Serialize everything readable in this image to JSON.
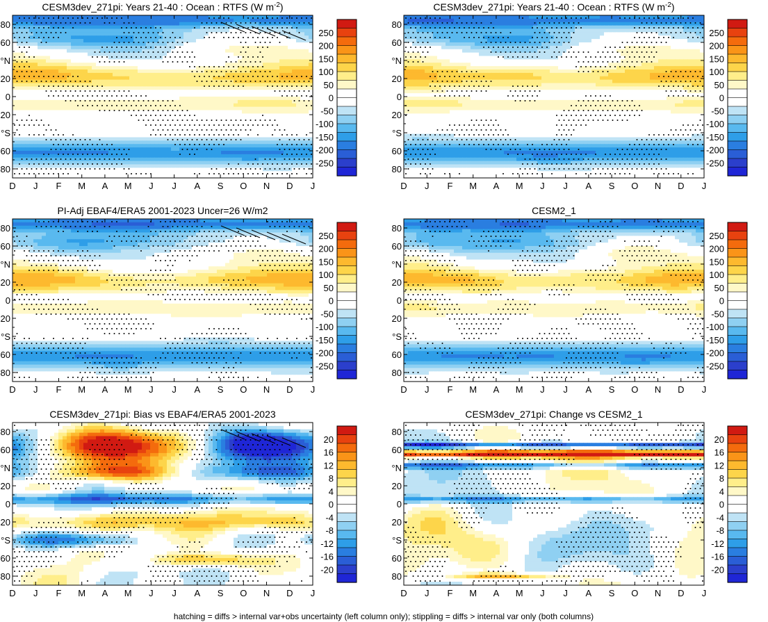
{
  "footer": "hatching = diffs > internal var+obs uncertainty (left column only); stippling = diffs > internal var only (both columns)",
  "chart_data": [
    {
      "type": "heatmap",
      "title": "CESM3dev_271pi: Years 21-40 : Ocean : RTFS (W m",
      "title_sup": "-2",
      "title_end": ")",
      "field": "rtfs",
      "seed": 11,
      "hatch": true,
      "scale": "abs"
    },
    {
      "type": "heatmap",
      "title": "CESM3dev_271pi: Years 21-40 : Ocean : RTFS (W m",
      "title_sup": "-2",
      "title_end": ")",
      "field": "rtfs",
      "seed": 23,
      "hatch": false,
      "scale": "abs"
    },
    {
      "type": "heatmap",
      "title": "PI-Adj EBAF4/ERA5 2001-2023 Uncer=26 W/m2",
      "title_sup": "",
      "title_end": "",
      "field": "rtfs",
      "seed": 37,
      "hatch": true,
      "scale": "abs"
    },
    {
      "type": "heatmap",
      "title": "CESM2_1",
      "title_sup": "",
      "title_end": "",
      "field": "rtfs",
      "seed": 41,
      "hatch": false,
      "scale": "abs"
    },
    {
      "type": "heatmap",
      "title": "CESM3dev_271pi: Bias vs EBAF4/ERA5 2001-2023",
      "title_sup": "",
      "title_end": "",
      "field": "bias",
      "seed": 53,
      "hatch": true,
      "scale": "diff"
    },
    {
      "type": "heatmap",
      "title": "CESM3dev_271pi: Change vs CESM2_1",
      "title_sup": "",
      "title_end": "",
      "field": "change",
      "seed": 67,
      "hatch": false,
      "scale": "diff"
    }
  ],
  "axes": {
    "x_ticks": [
      "D",
      "J",
      "F",
      "M",
      "A",
      "M",
      "J",
      "J",
      "A",
      "S",
      "O",
      "N",
      "D",
      "J"
    ],
    "y_ticks": [
      "80",
      "60",
      "°N",
      "20",
      "0",
      "20",
      "°S",
      "60",
      "80"
    ],
    "y_values": [
      80,
      60,
      40,
      20,
      0,
      -20,
      -40,
      -60,
      -80
    ],
    "ylim": [
      -90,
      90
    ]
  },
  "colorbars": {
    "abs": {
      "labels": [
        "250",
        "200",
        "150",
        "100",
        "50",
        "0",
        "-50",
        "-100",
        "-150",
        "-200",
        "-250"
      ],
      "colors": [
        "#d11a12",
        "#e8420f",
        "#f46b0d",
        "#fa9418",
        "#fdb92e",
        "#fdd54a",
        "#ffee8a",
        "#fff8c8",
        "#ffffff",
        "#ffffff",
        "#bfe3f5",
        "#8fd0f2",
        "#59b9ef",
        "#2e9ee8",
        "#2a7ee0",
        "#2a5ed6",
        "#2b3fcc",
        "#1f26d6"
      ]
    },
    "diff": {
      "labels": [
        "20",
        "16",
        "12",
        "8",
        "4",
        "0",
        "-4",
        "-8",
        "-12",
        "-16",
        "-20"
      ],
      "colors": [
        "#d11a12",
        "#e8420f",
        "#f46b0d",
        "#fa9418",
        "#fdb92e",
        "#fdd54a",
        "#ffee8a",
        "#fff8c8",
        "#ffffff",
        "#ffffff",
        "#bfe3f5",
        "#8fd0f2",
        "#59b9ef",
        "#2e9ee8",
        "#2a7ee0",
        "#2a5ed6",
        "#2b3fcc",
        "#1f26d6"
      ]
    }
  }
}
